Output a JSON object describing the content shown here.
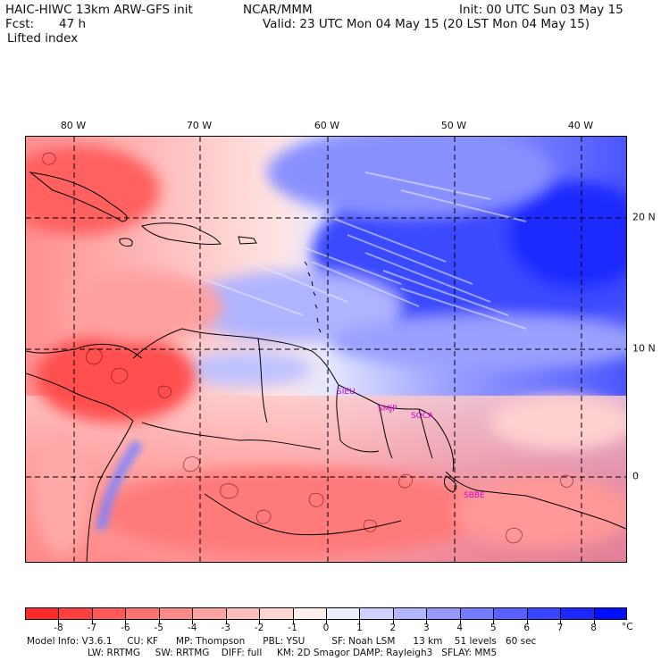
{
  "header": {
    "model": "HAIC-HIWC 13km ARW-GFS init",
    "org": "NCAR/MMM",
    "init": "Init: 00 UTC Sun 03 May 15",
    "fcst_label": "Fcst:",
    "fcst_value": "47 h",
    "valid": "Valid: 23 UTC Mon 04 May 15 (20 LST Mon 04 May 15)",
    "field": "Lifted index"
  },
  "axes": {
    "lon_labels": [
      "80 W",
      "70 W",
      "60 W",
      "50 W",
      "40 W"
    ],
    "lat_labels": [
      "20 N",
      "10 N",
      "0"
    ]
  },
  "cities": [
    "SIEU",
    "SMJP",
    "SOCA",
    "SBBE"
  ],
  "colorbar": {
    "labels": [
      "-8",
      "-7",
      "-6",
      "-5",
      "-4",
      "-3",
      "-2",
      "-1",
      "0",
      "1",
      "2",
      "3",
      "4",
      "5",
      "6",
      "7",
      "8"
    ],
    "unit": "°C",
    "colors": [
      "#ff2a2a",
      "#ff4040",
      "#ff5a5a",
      "#ff7272",
      "#ff8a8a",
      "#ffa2a2",
      "#ffbcbc",
      "#ffd6d6",
      "#fff0f0",
      "#ecedff",
      "#d0d2ff",
      "#b2b6ff",
      "#9498ff",
      "#767cff",
      "#5860ff",
      "#3a44ff",
      "#1c28ff",
      "#0010ff"
    ]
  },
  "footer": {
    "line1": "Model Info: V3.6.1     CU: KF      MP: Thompson      PBL: YSU         SF: Noah LSM      13 km    51 levels   60 sec",
    "line2": "LW: RRTMG     SW: RRTMG    DIFF: full     KM: 2D Smagor DAMP: Rayleigh3   SFLAY: MM5"
  }
}
